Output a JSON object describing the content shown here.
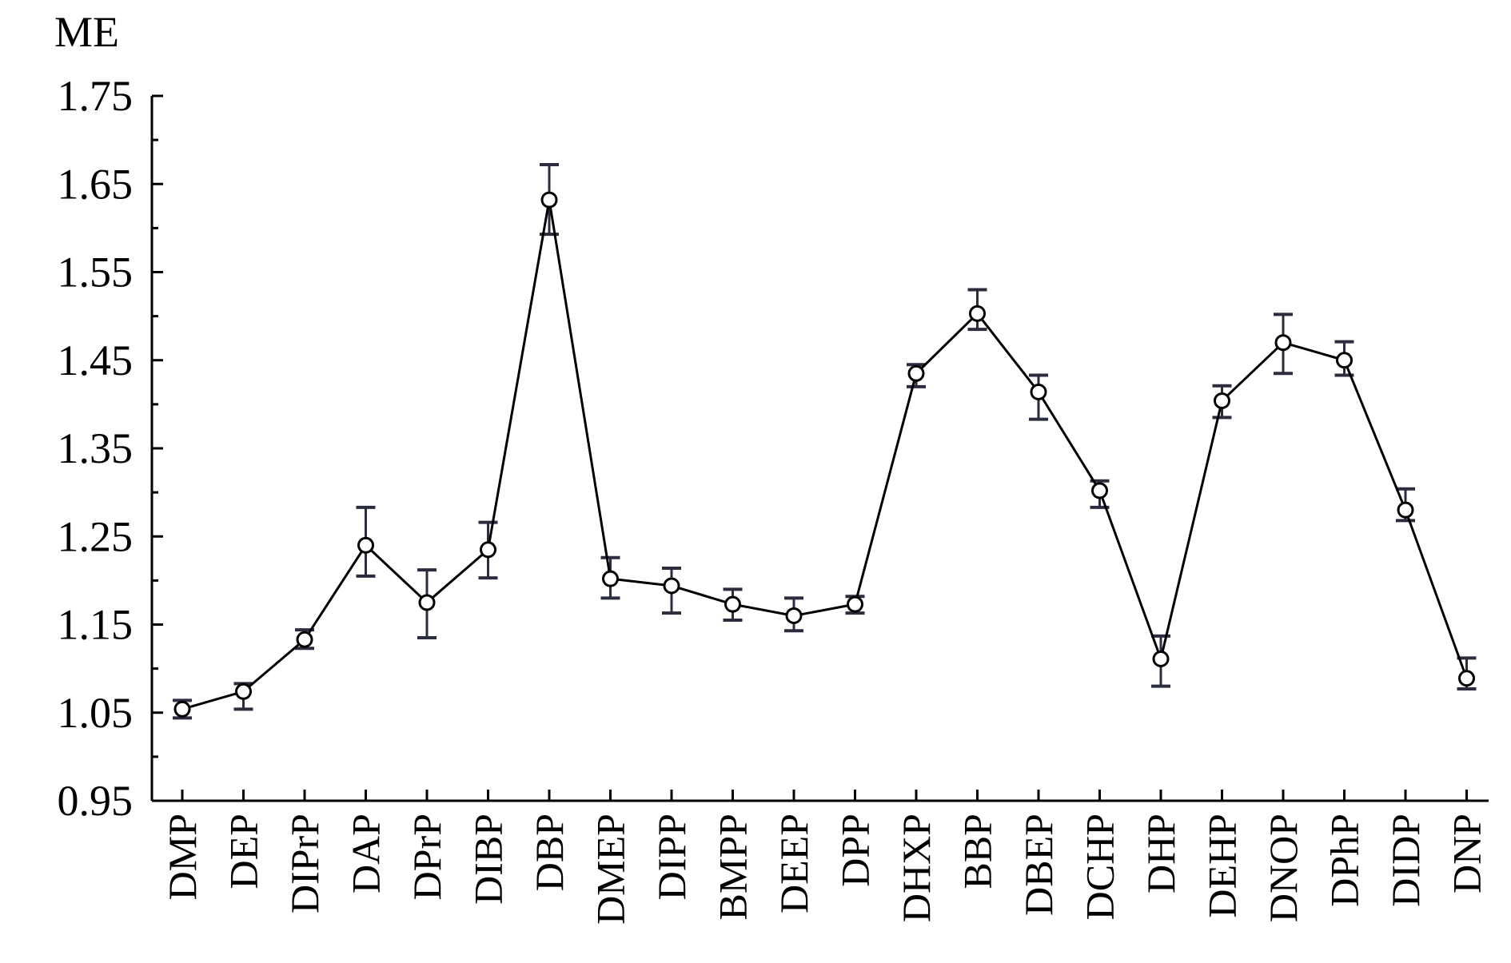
{
  "chart_data": {
    "type": "line",
    "ylabel": "ME",
    "ylim": [
      0.95,
      1.75
    ],
    "yticks": [
      "0.95",
      "1.05",
      "1.15",
      "1.25",
      "1.35",
      "1.45",
      "1.55",
      "1.65",
      "1.75"
    ],
    "grid": false,
    "categories": [
      "DMP",
      "DEP",
      "DIPrP",
      "DAP",
      "DPrP",
      "DIBP",
      "DBP",
      "DMEP",
      "DIPP",
      "BMPP",
      "DEEP",
      "DPP",
      "DHXP",
      "BBP",
      "DBEP",
      "DCHP",
      "DHP",
      "DEHP",
      "DNOP",
      "DPhP",
      "DIDP",
      "DNP"
    ],
    "series": [
      {
        "values": [
          1.054,
          1.074,
          1.133,
          1.24,
          1.175,
          1.235,
          1.632,
          1.202,
          1.194,
          1.173,
          1.16,
          1.173,
          1.435,
          1.503,
          1.414,
          1.302,
          1.111,
          1.404,
          1.47,
          1.45,
          1.28,
          1.089
        ],
        "error_low": [
          1.044,
          1.054,
          1.123,
          1.205,
          1.135,
          1.203,
          1.593,
          1.18,
          1.163,
          1.155,
          1.143,
          1.163,
          1.42,
          1.485,
          1.383,
          1.283,
          1.08,
          1.385,
          1.435,
          1.433,
          1.268,
          1.077
        ],
        "error_high": [
          1.064,
          1.083,
          1.144,
          1.283,
          1.212,
          1.266,
          1.672,
          1.226,
          1.214,
          1.19,
          1.18,
          1.182,
          1.445,
          1.53,
          1.433,
          1.313,
          1.137,
          1.421,
          1.502,
          1.471,
          1.304,
          1.112
        ],
        "color": "#000000",
        "errorbar_color": "#2b2d3f"
      }
    ]
  }
}
